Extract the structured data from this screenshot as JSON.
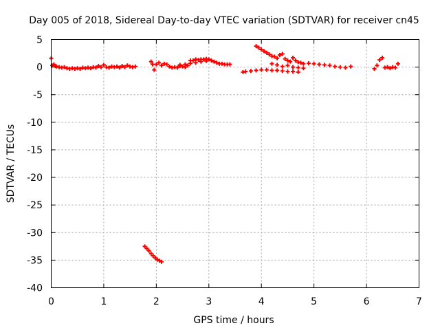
{
  "chart_data": {
    "type": "scatter",
    "title": "Day 005 of 2018, Sidereal Day-to-day VTEC variation (SDTVAR) for receiver cn45",
    "xlabel": "GPS time / hours",
    "ylabel": "SDTVAR / TECUs",
    "xlim": [
      0,
      7
    ],
    "ylim": [
      -40,
      5
    ],
    "xticks": [
      0,
      1,
      2,
      3,
      4,
      5,
      6,
      7
    ],
    "yticks": [
      5,
      0,
      -5,
      -10,
      -15,
      -20,
      -25,
      -30,
      -35,
      -40
    ],
    "grid": true,
    "marker": "plus",
    "colors": {
      "series": "#ff0000",
      "grid": "#a0a0a0",
      "axis": "#000000"
    },
    "series": [
      {
        "x": [
          0.0,
          0.02,
          0.05,
          0.08,
          0.1,
          0.15,
          0.2,
          0.25,
          0.3,
          0.35,
          0.4,
          0.45,
          0.5,
          0.55,
          0.6,
          0.65,
          0.7,
          0.75,
          0.8,
          0.85,
          0.9,
          0.95,
          1.0,
          1.05,
          1.1,
          1.15,
          1.2,
          1.25,
          1.3,
          1.35,
          1.4,
          1.45,
          1.5,
          1.55,
          1.6
        ],
        "y": [
          1.6,
          0.3,
          0.5,
          0.2,
          0.1,
          0.0,
          -0.1,
          0.0,
          -0.2,
          -0.3,
          -0.2,
          -0.3,
          -0.2,
          -0.3,
          -0.1,
          -0.2,
          -0.1,
          -0.2,
          0.0,
          -0.1,
          0.2,
          0.0,
          0.4,
          0.0,
          -0.1,
          0.1,
          0.0,
          0.1,
          -0.1,
          0.2,
          0.0,
          0.3,
          0.1,
          0.0,
          0.1
        ]
      },
      {
        "x": [
          1.9,
          1.93,
          1.96,
          2.0,
          2.05,
          2.1,
          2.15,
          2.2,
          2.25,
          2.3,
          2.35,
          2.4,
          2.45,
          2.5,
          2.55,
          2.6,
          2.65,
          2.7,
          2.75,
          2.8,
          2.85,
          2.9,
          2.95,
          3.0,
          3.05,
          3.1,
          3.15,
          3.2,
          3.25,
          3.3,
          3.35,
          3.4
        ],
        "y": [
          1.0,
          0.5,
          -0.5,
          0.5,
          0.8,
          0.3,
          0.6,
          0.5,
          0.1,
          -0.1,
          0.0,
          -0.1,
          0.2,
          0.1,
          0.0,
          0.3,
          1.2,
          1.2,
          1.4,
          1.3,
          1.4,
          1.4,
          1.5,
          1.4,
          1.2,
          1.0,
          0.8,
          0.6,
          0.6,
          0.5,
          0.5,
          0.5
        ]
      },
      {
        "x": [
          2.45,
          2.55,
          2.65,
          2.75,
          2.85,
          2.95,
          3.05
        ],
        "y": [
          0.4,
          0.5,
          0.7,
          0.8,
          1.0,
          1.1,
          1.2
        ]
      },
      {
        "x": [
          3.65,
          3.7,
          3.8,
          3.9,
          4.0,
          4.1,
          4.2,
          4.3,
          4.4,
          4.5,
          4.6,
          4.7
        ],
        "y": [
          -0.9,
          -0.8,
          -0.7,
          -0.6,
          -0.5,
          -0.5,
          -0.6,
          -0.6,
          -0.7,
          -0.8,
          -0.8,
          -0.9
        ]
      },
      {
        "x": [
          3.9,
          3.95,
          4.0,
          4.05,
          4.1,
          4.15,
          4.2,
          4.25,
          4.3,
          4.35,
          4.4,
          4.45,
          4.5,
          4.55,
          4.6,
          4.65,
          4.7,
          4.75,
          4.8,
          4.9,
          5.0,
          5.1,
          5.2,
          5.3,
          5.4,
          5.5,
          5.6,
          5.7
        ],
        "y": [
          3.8,
          3.5,
          3.2,
          2.9,
          2.6,
          2.3,
          2.0,
          1.9,
          1.6,
          2.2,
          2.4,
          1.5,
          1.2,
          1.0,
          1.7,
          1.2,
          0.9,
          0.8,
          0.6,
          0.7,
          0.6,
          0.5,
          0.4,
          0.3,
          0.1,
          0.0,
          -0.1,
          0.1
        ]
      },
      {
        "x": [
          4.2,
          4.3,
          4.4,
          4.5,
          4.6,
          4.7,
          4.8
        ],
        "y": [
          0.6,
          0.4,
          0.1,
          0.3,
          0.0,
          -0.1,
          -0.2
        ]
      },
      {
        "x": [
          6.15,
          6.2,
          6.25,
          6.3,
          6.35,
          6.4,
          6.45,
          6.5,
          6.55,
          6.6
        ],
        "y": [
          -0.3,
          0.3,
          1.3,
          1.7,
          -0.1,
          0.0,
          -0.2,
          0.0,
          -0.1,
          0.6
        ]
      },
      {
        "x": [
          1.78,
          1.82,
          1.86,
          1.9,
          1.94,
          1.98,
          2.02,
          2.06,
          2.1
        ],
        "y": [
          -32.5,
          -32.9,
          -33.3,
          -33.8,
          -34.2,
          -34.6,
          -34.9,
          -35.1,
          -35.3
        ]
      }
    ]
  }
}
